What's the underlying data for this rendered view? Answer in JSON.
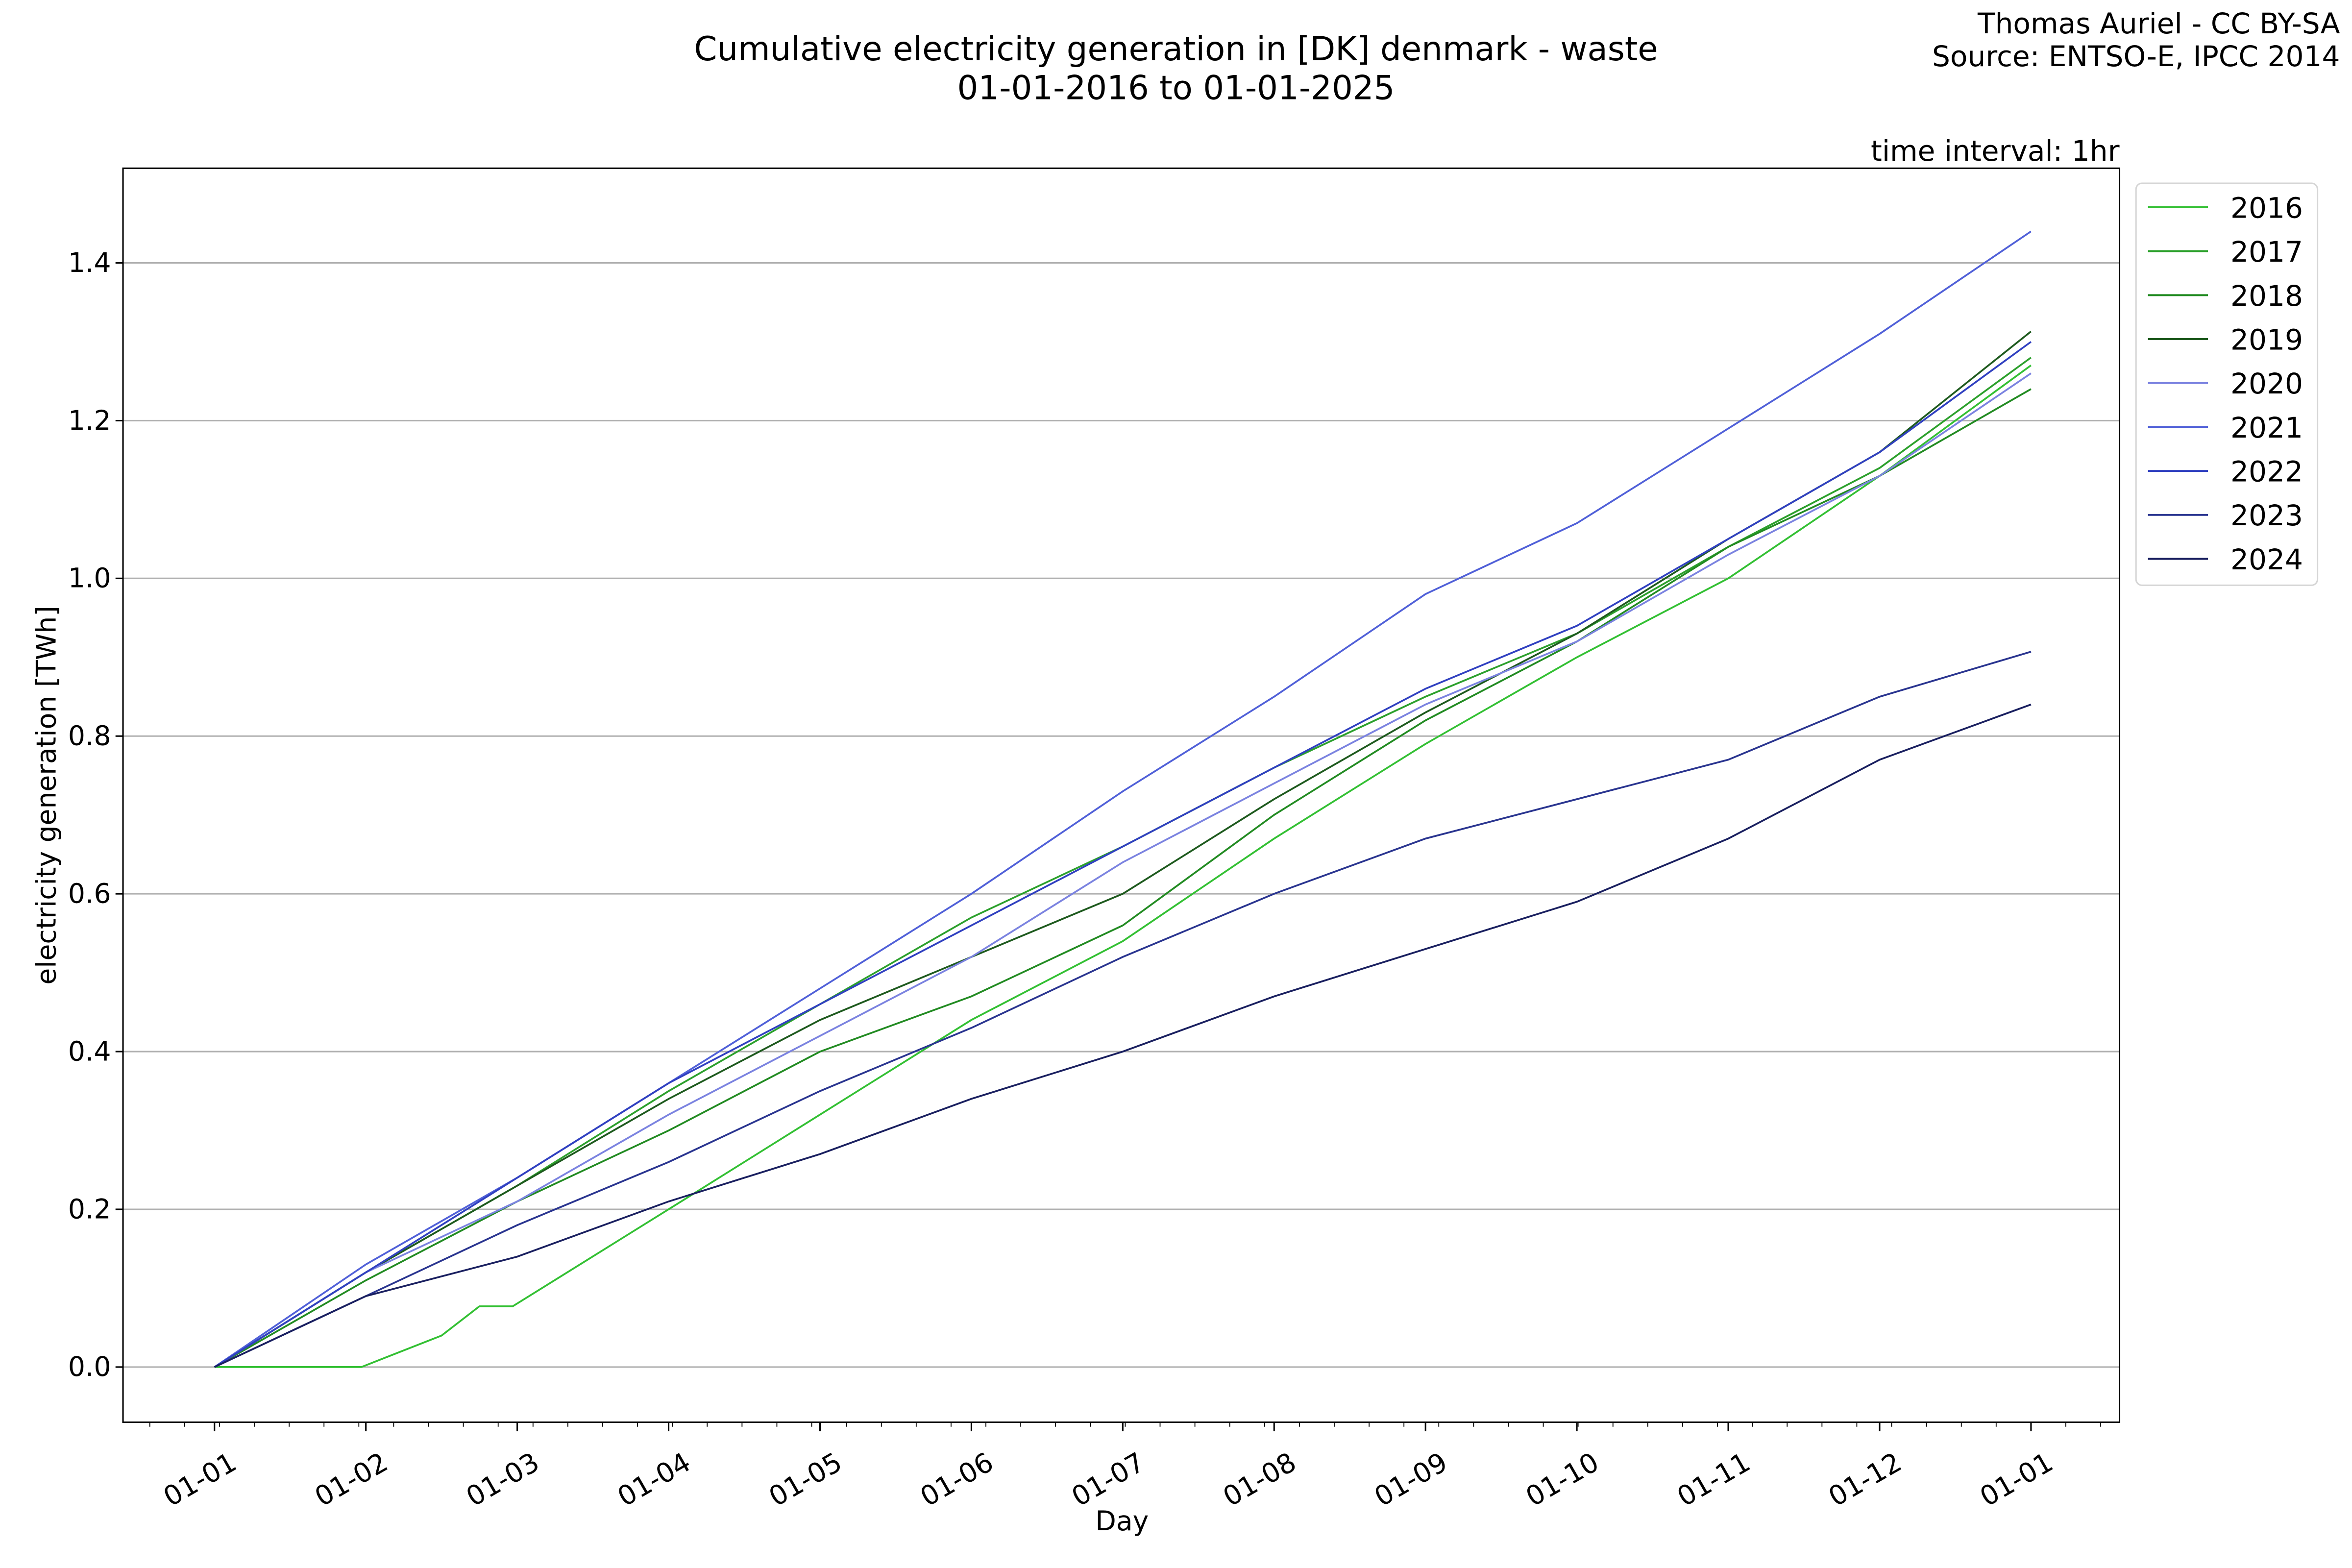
{
  "chart_data": {
    "type": "line",
    "title": "Cumulative electricity generation in [DK] denmark - waste",
    "subtitle": "01-01-2016 to 01-01-2025",
    "credit": [
      "Thomas Auriel - CC BY-SA",
      "Source: ENTSO-E, IPCC 2014"
    ],
    "annotation": "time interval: 1hr",
    "xlabel": "Day",
    "ylabel": "electricity generation [TWh]",
    "ylim": [
      -0.07,
      1.52
    ],
    "yticks": [
      0.0,
      0.2,
      0.4,
      0.6,
      0.8,
      1.0,
      1.2,
      1.4
    ],
    "ytick_labels": [
      "0.0",
      "0.2",
      "0.4",
      "0.6",
      "0.8",
      "1.0",
      "1.2",
      "1.4"
    ],
    "xtick_labels": [
      "01-01",
      "01-02",
      "01-03",
      "01-04",
      "01-05",
      "01-06",
      "01-07",
      "01-08",
      "01-09",
      "01-10",
      "01-11",
      "01-12",
      "01-01"
    ],
    "grid": "horizontal",
    "legend_placement": "outside-right",
    "x_months": [
      0,
      1,
      2,
      3,
      4,
      5,
      6,
      7,
      8,
      9,
      10,
      11,
      12
    ],
    "series": [
      {
        "name": "2016",
        "color": "#33c033",
        "x": [
          0,
          0.97,
          1.5,
          1.75,
          1.97,
          3,
          4,
          5,
          6,
          7,
          8,
          9,
          10,
          11,
          12
        ],
        "values": [
          0,
          0,
          0.04,
          0.077,
          0.077,
          0.2,
          0.32,
          0.44,
          0.54,
          0.67,
          0.79,
          0.9,
          1.0,
          1.13,
          1.27
        ]
      },
      {
        "name": "2017",
        "color": "#2ca02c",
        "values": [
          0,
          0.12,
          0.23,
          0.35,
          0.46,
          0.57,
          0.66,
          0.76,
          0.85,
          0.93,
          1.04,
          1.14,
          1.28
        ]
      },
      {
        "name": "2018",
        "color": "#228b22",
        "values": [
          0,
          0.11,
          0.21,
          0.3,
          0.4,
          0.47,
          0.56,
          0.7,
          0.82,
          0.92,
          1.04,
          1.13,
          1.24
        ]
      },
      {
        "name": "2019",
        "color": "#1e5a1e",
        "values": [
          0,
          0.12,
          0.23,
          0.34,
          0.44,
          0.52,
          0.6,
          0.72,
          0.83,
          0.93,
          1.05,
          1.16,
          1.313
        ]
      },
      {
        "name": "2020",
        "color": "#7b83e0",
        "values": [
          0,
          0.12,
          0.21,
          0.32,
          0.42,
          0.52,
          0.64,
          0.74,
          0.84,
          0.92,
          1.03,
          1.13,
          1.26
        ]
      },
      {
        "name": "2021",
        "color": "#5060d8",
        "values": [
          0,
          0.13,
          0.24,
          0.36,
          0.48,
          0.6,
          0.73,
          0.85,
          0.98,
          1.07,
          1.19,
          1.31,
          1.44
        ]
      },
      {
        "name": "2022",
        "color": "#3040c0",
        "values": [
          0,
          0.12,
          0.24,
          0.36,
          0.46,
          0.56,
          0.66,
          0.76,
          0.86,
          0.94,
          1.05,
          1.16,
          1.3
        ]
      },
      {
        "name": "2023",
        "color": "#2a3590",
        "values": [
          0,
          0.09,
          0.18,
          0.26,
          0.35,
          0.43,
          0.52,
          0.6,
          0.67,
          0.72,
          0.77,
          0.85,
          0.907
        ]
      },
      {
        "name": "2024",
        "color": "#1a2060",
        "values": [
          0,
          0.09,
          0.14,
          0.21,
          0.27,
          0.34,
          0.4,
          0.47,
          0.53,
          0.59,
          0.67,
          0.77,
          0.84
        ]
      }
    ]
  }
}
